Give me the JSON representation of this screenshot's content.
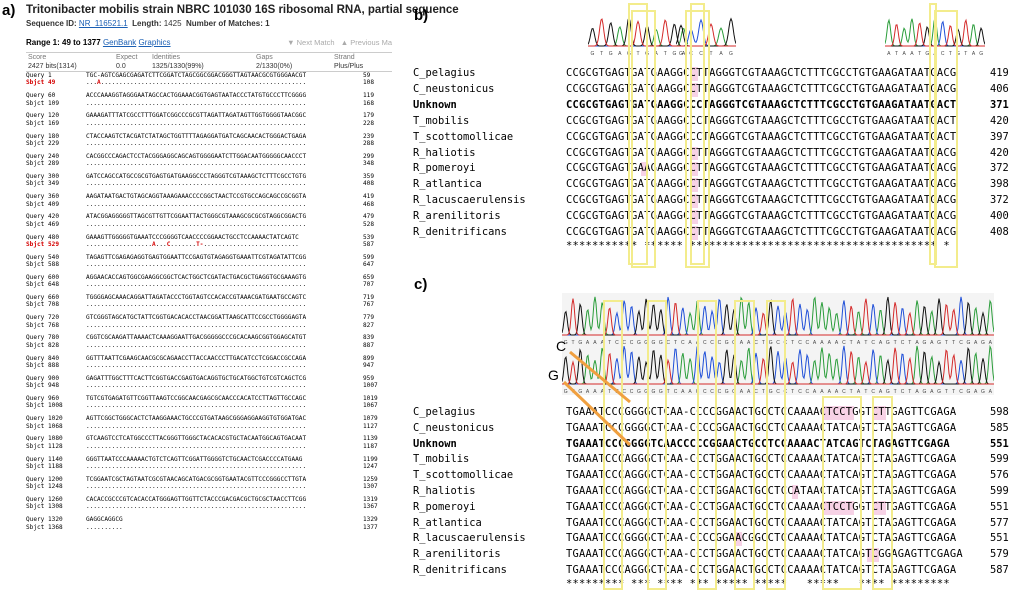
{
  "panel_a": {
    "label": "a)",
    "title": "Tritonibacter mobilis strain NBRC 101030 16S ribosomal RNA, partial sequence",
    "seq_id_label": "Sequence ID:",
    "seq_id": "NR_116521.1",
    "length_label": "Length:",
    "length": "1425",
    "matches_label": "Number of Matches:",
    "matches": "1",
    "range": "Range 1: 49 to 1377",
    "genbank": "GenBank",
    "graphics": "Graphics",
    "next_match": "▼ Next Match",
    "prev_match": "▲ Previous Ma",
    "score_headers": [
      "Score",
      "Expect",
      "Identities",
      "Gaps",
      "Strand"
    ],
    "score_values": [
      "2427 bits(1314)",
      "0.0",
      "1325/1330(99%)",
      "2/1330(0%)",
      "Plus/Plus"
    ],
    "alignment": [
      {
        "qs": "1",
        "q": "TGC-AGTCGAGCGAGATCTTCGGATCTAGCGGCGGACGGGTTAGTAACGCGTGGGAACGT",
        "qe": "59",
        "ss": "49",
        "s": "...A........................................................",
        "se": "108",
        "red": true
      },
      {
        "qs": "60",
        "q": "ACCCAAAGGTAGGGAATAGCCACTGGAAACGGTGAGTAATACCCTATGTGCCCTTCGGGG",
        "qe": "119",
        "ss": "109",
        "s": "............................................................",
        "se": "168"
      },
      {
        "qs": "120",
        "q": "GAAAGATTTATCGCCTTTGGATCGGCCCGCGTTAGATTAGATAGTTGGTGGGGTAACGGC",
        "qe": "179",
        "ss": "169",
        "s": "............................................................",
        "se": "228"
      },
      {
        "qs": "180",
        "q": "CTACCAAGTCTACGATCTATAGCTGGTTTTAGAGGATGATCAGCAACACTGGGACTGAGA",
        "qe": "239",
        "ss": "229",
        "s": "............................................................",
        "se": "288"
      },
      {
        "qs": "240",
        "q": "CACGGCCCAGACTCCTACGGGAGGCAGCAGTGGGGAATCTTGGACAATGGGGGCAACCCT",
        "qe": "299",
        "ss": "289",
        "s": "............................................................",
        "se": "348"
      },
      {
        "qs": "300",
        "q": "GATCCAGCCATGCCGCGTGAGTGATGAAGGCCCTAGGGTCGTAAAGCTCTTTCGCCTGTG",
        "qe": "359",
        "ss": "349",
        "s": "............................................................",
        "se": "408"
      },
      {
        "qs": "360",
        "q": "AAGATAATGACTGTAGCAGGTAAAGAAACCCCGGCTAACTCCGTGCCAGCAGCCGCGGTA",
        "qe": "419",
        "ss": "409",
        "s": "............................................................",
        "se": "468"
      },
      {
        "qs": "420",
        "q": "ATACGGAGGGGGTTAGCGTTGTTCGGAATTACTGGGCGTAAAGCGCGCGTAGGCGGACTG",
        "qe": "479",
        "ss": "469",
        "s": "............................................................",
        "se": "528"
      },
      {
        "qs": "480",
        "q": "GAAAGTTGGGGGTGAAATCCCGGGGTCAACCCCGGAACTGCCTCCAAAACTATCAGTC",
        "qe": "539",
        "ss": "529",
        "s": "..................A...C.......T-..........................",
        "se": "587",
        "red": true
      },
      {
        "qs": "540",
        "q": "TAGAGTTCGAGAGAGGTGAGTGGAATTCCGAGTGTAGAGGTGAAATTCGTAGATATTCGG",
        "qe": "599",
        "ss": "588",
        "s": "............................................................",
        "se": "647"
      },
      {
        "qs": "600",
        "q": "AGGAACACCAGTGGCGAAGGCGGCTCACTGGCTCGATACTGACGCTGAGGTGCGAAAGTG",
        "qe": "659",
        "ss": "648",
        "s": "............................................................",
        "se": "707"
      },
      {
        "qs": "660",
        "q": "TGGGGAGCAAACAGGATTAGATACCCTGGTAGTCCACACCGTAAACGATGAATGCCAGTC",
        "qe": "719",
        "ss": "708",
        "s": "............................................................",
        "se": "767"
      },
      {
        "qs": "720",
        "q": "GTCGGGTAGCATGCTATTCGGTGACACACCTAACGGATTAAGCATTCCGCCTGGGGAGTA",
        "qe": "779",
        "ss": "768",
        "s": "............................................................",
        "se": "827"
      },
      {
        "qs": "780",
        "q": "CGGTCGCAAGATTAAAACTCAAAGGAATTGACGGGGGCCCGCACAAGCGGTGGAGCATGT",
        "qe": "839",
        "ss": "828",
        "s": "............................................................",
        "se": "887"
      },
      {
        "qs": "840",
        "q": "GGTTTAATTCGAAGCAACGCGCAGAACCTTACCAACCCTTGACATCCTCGGACCGCCAGA",
        "qe": "899",
        "ss": "888",
        "s": "............................................................",
        "se": "947"
      },
      {
        "qs": "900",
        "q": "GAGATTTGGCTTTCACTTCGGTGACCGAGTGACAGGTGCTGCATGGCTGTCGTCAGCTCG",
        "qe": "959",
        "ss": "948",
        "s": "............................................................",
        "se": "1007"
      },
      {
        "qs": "960",
        "q": "TGTCGTGAGATGTTCGGTTAAGTCCGGCAACGAGCGCAACCCACATCCTTAGTTGCCAGC",
        "qe": "1019",
        "ss": "1008",
        "s": "............................................................",
        "se": "1067"
      },
      {
        "qs": "1020",
        "q": "AGTTCGGCTGGGCACTCTAAGGAAACTGCCCGTGATAAGCGGGAGGAAGGTGTGGATGAC",
        "qe": "1079",
        "ss": "1068",
        "s": "............................................................",
        "se": "1127"
      },
      {
        "qs": "1080",
        "q": "GTCAAGTCCTCATGGCCCTTACGGGTTGGGCTACACACGTGCTACAATGGCAGTGACAAT",
        "qe": "1139",
        "ss": "1128",
        "s": "............................................................",
        "se": "1187"
      },
      {
        "qs": "1140",
        "q": "GGGTTAATCCCAAAAACTGTCTCAGTTCGGATTGGGGTCTGCAACTCGACCCCATGAAG",
        "qe": "1199",
        "ss": "1188",
        "s": "............................................................",
        "se": "1247"
      },
      {
        "qs": "1200",
        "q": "TCGGAATCGCTAGTAATCGCGTAACAGCATGACGCGGTGAATACGTTCCCGGGCCTTGTA",
        "qe": "1259",
        "ss": "1248",
        "s": "............................................................",
        "se": "1307"
      },
      {
        "qs": "1260",
        "q": "CACACCGCCCGTCACACCATGGGAGTTGGTTCTACCCGACGACGCTGCGCTAACCTTCGG",
        "qe": "1319",
        "ss": "1308",
        "s": "............................................................",
        "se": "1367"
      },
      {
        "qs": "1320",
        "q": "GAGGCAGGCG",
        "qe": "1329",
        "ss": "1368",
        "s": "..........",
        "se": "1377"
      }
    ]
  },
  "panel_b": {
    "label": "b)",
    "trace1_bases": "GTGAGTGATGA",
    "trace2_bases": "GCCTAG",
    "trace3_bases": "ATAATGACTGTAG",
    "species": [
      {
        "name": "C_pelagius",
        "seq": "CCGCGTGAGTGATGAAGGCCTTAGGGTCGTAAAGCTCTTTCGCCTGTGAAGATAATGACG",
        "num": "419"
      },
      {
        "name": "C_neustonicus",
        "seq": "CCGCGTGAGTGATGAAGGCCTTAGGGTCGTAAAGCTCTTTCGCCTGTGAAGATAATGACG",
        "num": "406"
      },
      {
        "name": "Unknown",
        "seq": "CCGCGTGAGTGATGAAGGCCCTAGGGTCGTAAAGCTCTTTCGCCTGTGAAGATAATGACT",
        "num": "371",
        "bold": true
      },
      {
        "name": "T_mobilis",
        "seq": "CCGCGTGAGTGATGAAGGCCCTAGGGTCGTAAAGCTCTTTCGCCTGTGAAGATAATGACT",
        "num": "420"
      },
      {
        "name": "T_scottomollicae",
        "seq": "CCGCGTGAGTGATGAAGGCCCTAGGGTCGTAAAGCTCTTTCGCCTGTGAAGATAATGACT",
        "num": "397"
      },
      {
        "name": "R_haliotis",
        "seq": "CCGCGTGAGTGATGAAGGCCTTAGGGTCGTAAAGCTCTTTCGCCTGTGAAGATAATGACG",
        "num": "420"
      },
      {
        "name": "R_pomeroyi",
        "seq": "CCGCGTGAGTGAAGAAGGCCTTAGGGTCGTAAAGCTCTTTCGCCTGTGAAGATAATGACG",
        "num": "372"
      },
      {
        "name": "R_atlantica",
        "seq": "CCGCGTGAGTGATGAAGGCCTTAGGGTCGTAAAGCTCTTTCGCCTGTGAAGATAATGACG",
        "num": "398"
      },
      {
        "name": "R_lacuscaerulensis",
        "seq": "CCGCGTGAGTGATGAAGGCCTTAGGGTCGTAAAGCTCTTTCGCCTGTGAAGATAATGACG",
        "num": "372"
      },
      {
        "name": "R_arenilitoris",
        "seq": "CCGCGTGAGTGATGAAGGCCTTAGGGTCGTAAAGCTCTTTCGCCTGTGAAGATAATGACG",
        "num": "400"
      },
      {
        "name": "R_denitrificans",
        "seq": "CCGCGTGAGTGATGAAGGCCTTAGGGTCGTAAAGCTCTTTCGCCTGTGAAGATAATGACG",
        "num": "408"
      }
    ],
    "consensus": "*********** ****** ************************************** *"
  },
  "panel_c": {
    "label": "c)",
    "callout_c": "C",
    "callout_g": "G",
    "trace_top_bases": "GTGAAATCCCGGGGCTCAACCCGGAACTGCCTCCAAAACTATCAGTCTAGAGTTCGAGA",
    "trace_mid_bases": "GTGAAATCCCGGGGTCAACCCCGGAACTGCCTCCAAAACTATCAGTCTAGAGTTCGAGA",
    "species": [
      {
        "name": "C_pelagius",
        "seq": "TGAAATCCCGGGGCTCAA-CCCCGGAACTGCCTCCAAAACTCCTGGTCTTGAGTTCGAGA",
        "num": "598"
      },
      {
        "name": "C_neustonicus",
        "seq": "TGAAATCCCGGGGCTCAA-CCCCGGAACTGCCTCCAAAACTATCAGTCTAGAGTTCGAGA",
        "num": "585"
      },
      {
        "name": "Unknown",
        "seq": "TGAAATCCCGGGGTCAACCCCCGGAACTGCCTCCAAAACTATCAGTCTAGAGTTCGAGA",
        "num": "551",
        "bold": true
      },
      {
        "name": "T_mobilis",
        "seq": "TGAAATCCCAGGGCTCAA-CCCTGGAACTGCCTCCAAAACTATCAGTCTAGAGTTCGAGA",
        "num": "599"
      },
      {
        "name": "T_scottomollicae",
        "seq": "TGAAATCCCAGGGCTCAA-CCCTGGAACTGCCTCCAAAACTATCAGTCTAGAGTTCGAGA",
        "num": "576"
      },
      {
        "name": "R_haliotis",
        "seq": "TGAAATCCCAGGGCTCAA-CCCTGGAACTGCCTCCATAACTATCAGTCTAGAGTTCGAGA",
        "num": "599"
      },
      {
        "name": "R_pomeroyi",
        "seq": "TGAAATCCCAGGGCTCAA-CCCTGGAACTGCCTCCAAAACTCCTGGTCTTGAGTTCGAGA",
        "num": "551"
      },
      {
        "name": "R_atlantica",
        "seq": "TGAAATCCCAGGGCTCAA-CCCTGGAACTGCCTCCAAAACTATCAGTCTAGAGTTCGAGA",
        "num": "577"
      },
      {
        "name": "R_lacuscaerulensis",
        "seq": "TGAAATCCCGGGGCTCAA-CCCCGGAACGGCCTCCAAAACTATCAGTCTAGAGTTCGAGA",
        "num": "551"
      },
      {
        "name": "R_arenilitoris",
        "seq": "TGAAATCCCAGGGCTCAA-CCCTGGAACTGCCTCCAAAACTATCAGTCGGAGAGTTCGAGA",
        "num": "579"
      },
      {
        "name": "R_denitrificans",
        "seq": "TGAAATCCCAGGGCTCAA-CCCTGGAACTGCCTCCAAAACTATCAGTCTAGAGTTCGAGA",
        "num": "587"
      }
    ],
    "consensus": "********* *** **** *** ***** *****   *****   **** *********"
  },
  "colors": {
    "highlight_box": "#f3ec8c",
    "mismatch_pink": "#f7d2e6",
    "arrow_orange": "#f0a040",
    "link_blue": "#1a5fb4",
    "mismatch_red": "#d40000"
  }
}
